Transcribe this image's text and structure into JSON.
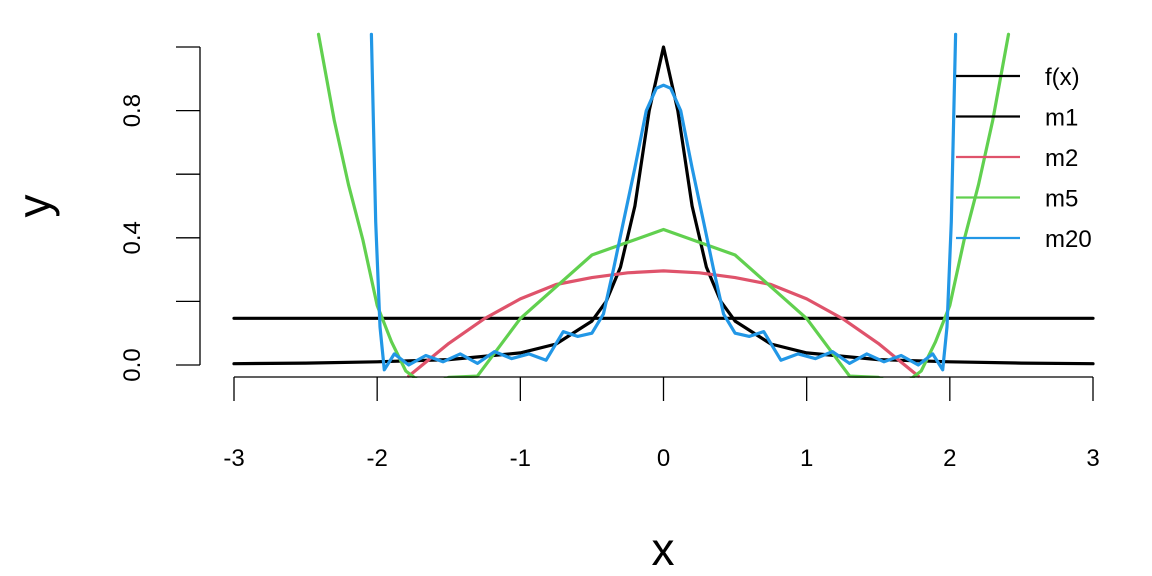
{
  "chart_data": {
    "type": "line",
    "title": "",
    "xlabel": "x",
    "ylabel": "y",
    "xlim": [
      -3,
      3
    ],
    "ylim": [
      0,
      1
    ],
    "grid": false,
    "legend_position": "top-right",
    "x_ticks": [
      {
        "value": -3,
        "label": "-3"
      },
      {
        "value": -2,
        "label": "-2"
      },
      {
        "value": -1,
        "label": "-1"
      },
      {
        "value": 0,
        "label": "0"
      },
      {
        "value": 1,
        "label": "1"
      },
      {
        "value": 2,
        "label": "2"
      },
      {
        "value": 3,
        "label": "3"
      }
    ],
    "y_ticks": [
      {
        "value": 0.0,
        "label": "0.0"
      },
      {
        "value": 0.2,
        "label": ""
      },
      {
        "value": 0.4,
        "label": "0.4"
      },
      {
        "value": 0.6,
        "label": ""
      },
      {
        "value": 0.8,
        "label": "0.8"
      },
      {
        "value": 1.0,
        "label": ""
      }
    ],
    "series": [
      {
        "name": "f(x)",
        "color": "#000000",
        "x": [
          -3,
          -2.5,
          -2,
          -1.5,
          -1,
          -0.75,
          -0.5,
          -0.4,
          -0.3,
          -0.2,
          -0.1,
          0,
          0.1,
          0.2,
          0.3,
          0.4,
          0.5,
          0.75,
          1,
          1.5,
          2,
          2.5,
          3
        ],
        "y": [
          0.004,
          0.006,
          0.01,
          0.017,
          0.038,
          0.066,
          0.138,
          0.2,
          0.308,
          0.5,
          0.8,
          1.0,
          0.8,
          0.5,
          0.308,
          0.2,
          0.138,
          0.066,
          0.038,
          0.017,
          0.01,
          0.006,
          0.004
        ]
      },
      {
        "name": "m1",
        "color": "#000000",
        "x": [
          -3,
          3
        ],
        "y": [
          0.147,
          0.147
        ]
      },
      {
        "name": "m2",
        "color": "#DF536B",
        "x": [
          -1.78,
          -1.5,
          -1.25,
          -1,
          -0.75,
          -0.5,
          -0.25,
          0,
          0.25,
          0.5,
          0.75,
          1,
          1.25,
          1.5,
          1.78
        ],
        "y": [
          -0.035,
          0.068,
          0.146,
          0.208,
          0.253,
          0.275,
          0.29,
          0.296,
          0.29,
          0.275,
          0.253,
          0.208,
          0.146,
          0.068,
          -0.035
        ]
      },
      {
        "name": "m5",
        "color": "#61D04F",
        "x": [
          -2.41,
          -2.3,
          -2.2,
          -2.1,
          -2.0,
          -1.9,
          -1.8,
          -1.7,
          -1.6,
          -1.5,
          -1.3,
          -1.0,
          -0.5,
          0,
          0.5,
          1.0,
          1.3,
          1.5,
          1.6,
          1.7,
          1.8,
          1.9,
          2.0,
          2.1,
          2.2,
          2.3,
          2.41
        ],
        "y": [
          1.04,
          0.77,
          0.567,
          0.393,
          0.187,
          0.073,
          -0.019,
          -0.053,
          -0.058,
          -0.039,
          -0.035,
          0.146,
          0.346,
          0.426,
          0.346,
          0.146,
          -0.035,
          -0.039,
          -0.058,
          -0.053,
          -0.019,
          0.073,
          0.187,
          0.393,
          0.567,
          0.77,
          1.04
        ]
      },
      {
        "name": "m20",
        "color": "#2297E6",
        "x": [
          -2.04,
          -2.01,
          -1.98,
          -1.95,
          -1.88,
          -1.78,
          -1.66,
          -1.54,
          -1.42,
          -1.3,
          -1.18,
          -1.06,
          -0.94,
          -0.82,
          -0.7,
          -0.6,
          -0.5,
          -0.42,
          -0.35,
          -0.28,
          -0.2,
          -0.12,
          -0.05,
          0,
          0.05,
          0.12,
          0.2,
          0.28,
          0.35,
          0.42,
          0.5,
          0.6,
          0.7,
          0.82,
          0.94,
          1.06,
          1.18,
          1.3,
          1.42,
          1.54,
          1.66,
          1.78,
          1.88,
          1.95,
          1.98,
          2.01,
          2.04
        ],
        "y": [
          1.04,
          0.45,
          0.12,
          -0.015,
          0.035,
          0.0,
          0.03,
          0.01,
          0.035,
          0.005,
          0.042,
          0.02,
          0.035,
          0.015,
          0.105,
          0.09,
          0.1,
          0.16,
          0.3,
          0.45,
          0.62,
          0.8,
          0.87,
          0.88,
          0.87,
          0.8,
          0.62,
          0.45,
          0.3,
          0.16,
          0.1,
          0.09,
          0.105,
          0.015,
          0.035,
          0.02,
          0.042,
          0.005,
          0.035,
          0.01,
          0.03,
          0.0,
          0.035,
          -0.015,
          0.12,
          0.45,
          1.04
        ]
      }
    ]
  }
}
